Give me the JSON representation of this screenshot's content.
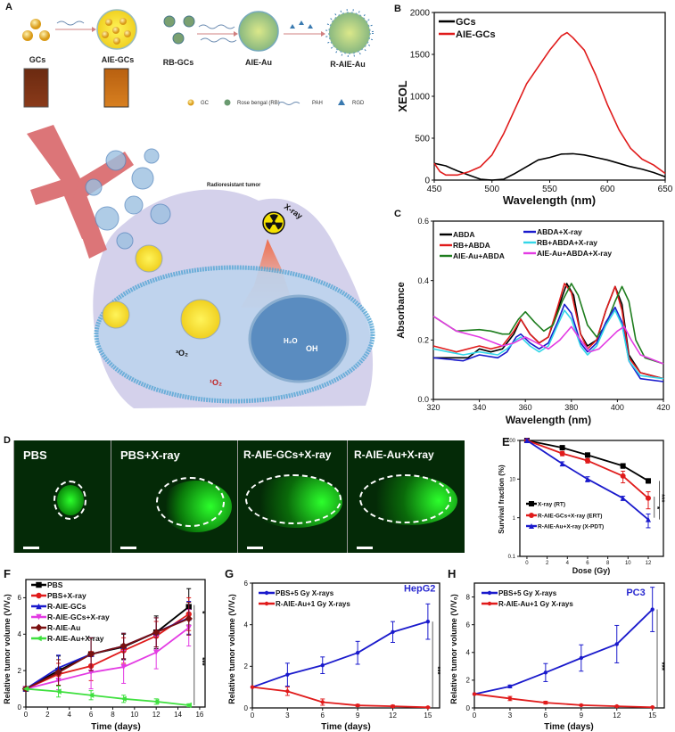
{
  "panels": [
    "A",
    "B",
    "C",
    "D",
    "E",
    "F",
    "G",
    "H"
  ],
  "schematic": {
    "species": [
      "GCs",
      "AIE-GCs",
      "RB-GCs",
      "AIE-Au",
      "R-AIE-Au"
    ],
    "legend": {
      "gc": "GC",
      "rb": "Rose bengal (RB)",
      "pah": "PAH",
      "rgd": "RGD"
    },
    "tumor_label": "Radioresistant tumor",
    "xray_label": "X-ray",
    "triplet_o2": "³O₂",
    "singlet_o2": "¹O₂",
    "water": "H₂O",
    "hydroxyl": "OH",
    "colors": {
      "gold": "#e0a020",
      "cell": "#c9c6e6",
      "vessel": "#d9676a",
      "membrane": "#5aa9d6"
    }
  },
  "fluorescence_images": [
    {
      "label": "PBS"
    },
    {
      "label": "PBS+X-ray"
    },
    {
      "label": "R-AIE-GCs+X-ray"
    },
    {
      "label": "R-AIE-Au+X-ray"
    }
  ],
  "chart_data": [
    {
      "panel": "B",
      "type": "line",
      "xlabel": "Wavelength (nm)",
      "ylabel": "XEOL",
      "xlim": [
        450,
        650
      ],
      "ylim": [
        0,
        2000
      ],
      "xticks": [
        450,
        500,
        550,
        600,
        650
      ],
      "yticks": [
        0,
        500,
        1000,
        1500,
        2000
      ],
      "series": [
        {
          "name": "GCs",
          "color": "#000000",
          "x": [
            450,
            460,
            470,
            480,
            490,
            500,
            510,
            520,
            530,
            540,
            550,
            560,
            570,
            580,
            590,
            600,
            610,
            620,
            630,
            640,
            650
          ],
          "y": [
            200,
            170,
            110,
            60,
            10,
            0,
            10,
            80,
            160,
            240,
            270,
            310,
            315,
            300,
            270,
            240,
            200,
            160,
            130,
            90,
            40
          ]
        },
        {
          "name": "AIE-GCs",
          "color": "#e01b1b",
          "x": [
            450,
            455,
            460,
            470,
            480,
            490,
            500,
            510,
            520,
            530,
            540,
            550,
            560,
            565,
            570,
            580,
            590,
            600,
            610,
            620,
            630,
            640,
            650
          ],
          "y": [
            200,
            100,
            60,
            60,
            100,
            160,
            300,
            550,
            850,
            1150,
            1350,
            1550,
            1720,
            1760,
            1700,
            1550,
            1250,
            900,
            600,
            380,
            250,
            180,
            80
          ]
        }
      ]
    },
    {
      "panel": "C",
      "type": "line",
      "xlabel": "Wavelength (nm)",
      "ylabel": "Absorbance",
      "xlim": [
        320,
        420
      ],
      "ylim": [
        0,
        0.6
      ],
      "xticks": [
        320,
        340,
        360,
        380,
        400,
        420
      ],
      "yticks": [
        0.0,
        0.2,
        0.4,
        0.6
      ],
      "ytick_labels": [
        "0.0",
        "0.2",
        "0.4",
        "0.6"
      ],
      "series": [
        {
          "name": "ABDA",
          "color": "#000000",
          "x": [
            320,
            330,
            335,
            340,
            345,
            350,
            355,
            358,
            362,
            366,
            370,
            374,
            378,
            381,
            384,
            387,
            391,
            395,
            399,
            402,
            405,
            410,
            420
          ],
          "y": [
            0.14,
            0.14,
            0.14,
            0.17,
            0.16,
            0.17,
            0.22,
            0.27,
            0.22,
            0.19,
            0.21,
            0.3,
            0.39,
            0.35,
            0.22,
            0.18,
            0.2,
            0.3,
            0.38,
            0.32,
            0.15,
            0.09,
            0.07
          ]
        },
        {
          "name": "RB+ABDA",
          "color": "#e01b1b",
          "x": [
            320,
            330,
            340,
            345,
            350,
            355,
            358,
            362,
            366,
            370,
            374,
            377,
            380,
            384,
            387,
            391,
            395,
            399,
            402,
            405,
            410,
            420
          ],
          "y": [
            0.18,
            0.16,
            0.18,
            0.17,
            0.18,
            0.23,
            0.27,
            0.22,
            0.19,
            0.21,
            0.31,
            0.39,
            0.36,
            0.22,
            0.17,
            0.2,
            0.3,
            0.38,
            0.3,
            0.14,
            0.09,
            0.07
          ]
        },
        {
          "name": "AIE-Au+ABDA",
          "color": "#1e7d1e",
          "x": [
            320,
            330,
            340,
            345,
            350,
            353,
            357,
            360,
            364,
            368,
            372,
            376,
            380,
            383,
            387,
            391,
            395,
            399,
            402,
            405,
            408,
            412,
            420
          ],
          "y": [
            0.28,
            0.23,
            0.235,
            0.23,
            0.22,
            0.22,
            0.27,
            0.295,
            0.26,
            0.23,
            0.25,
            0.33,
            0.39,
            0.35,
            0.25,
            0.21,
            0.25,
            0.33,
            0.38,
            0.33,
            0.2,
            0.14,
            0.12
          ]
        },
        {
          "name": "ABDA+X-ray",
          "color": "#1a1acc",
          "x": [
            320,
            333,
            340,
            348,
            352,
            356,
            358,
            362,
            366,
            370,
            374,
            377,
            380,
            384,
            387,
            391,
            395,
            399,
            402,
            405,
            410,
            420
          ],
          "y": [
            0.14,
            0.13,
            0.15,
            0.14,
            0.16,
            0.21,
            0.22,
            0.19,
            0.17,
            0.19,
            0.26,
            0.32,
            0.29,
            0.19,
            0.16,
            0.19,
            0.26,
            0.31,
            0.26,
            0.13,
            0.07,
            0.06
          ]
        },
        {
          "name": "RB+ABDA+X-ray",
          "color": "#33d6e8",
          "x": [
            320,
            333,
            340,
            348,
            352,
            356,
            358,
            362,
            366,
            370,
            374,
            377,
            380,
            384,
            387,
            391,
            395,
            399,
            402,
            405,
            410,
            420
          ],
          "y": [
            0.17,
            0.15,
            0.16,
            0.15,
            0.17,
            0.2,
            0.21,
            0.18,
            0.16,
            0.18,
            0.25,
            0.3,
            0.27,
            0.18,
            0.15,
            0.18,
            0.25,
            0.3,
            0.25,
            0.13,
            0.08,
            0.07
          ]
        },
        {
          "name": "AIE-Au+ABDA+X-ray",
          "color": "#e33be3",
          "x": [
            320,
            330,
            340,
            350,
            355,
            360,
            365,
            370,
            375,
            380,
            384,
            388,
            392,
            396,
            400,
            403,
            406,
            410,
            420
          ],
          "y": [
            0.28,
            0.23,
            0.21,
            0.18,
            0.19,
            0.21,
            0.19,
            0.17,
            0.2,
            0.245,
            0.2,
            0.16,
            0.17,
            0.2,
            0.23,
            0.245,
            0.2,
            0.15,
            0.12
          ]
        }
      ]
    },
    {
      "panel": "E",
      "type": "line",
      "xlabel": "Dose (Gy)",
      "ylabel": "Survival fraction (%)",
      "yscale": "log",
      "xlim": [
        -0.7,
        13.5
      ],
      "ylim": [
        0.1,
        100
      ],
      "xticks": [
        0,
        2,
        4,
        6,
        8,
        10,
        12
      ],
      "yticks": [
        0.1,
        1,
        10,
        100
      ],
      "ytick_labels": [
        "0.1",
        "1",
        "10",
        "100"
      ],
      "series": [
        {
          "name": "X-ray (RT)",
          "color": "#000000",
          "marker": "square",
          "x": [
            0,
            3.5,
            6,
            9.5,
            12
          ],
          "y": [
            100,
            65,
            42,
            22,
            9
          ],
          "err": [
            8,
            6,
            5,
            3,
            1.2
          ]
        },
        {
          "name": "R-AIE-GCs+X-ray (ERT)",
          "color": "#e01b1b",
          "marker": "circle",
          "x": [
            0,
            3.5,
            6,
            9.5,
            12
          ],
          "y": [
            100,
            46,
            30,
            12,
            3.2
          ],
          "err": [
            8,
            6,
            4,
            4,
            1.5
          ]
        },
        {
          "name": "R-AIE-Au+X-ray (X-PDT)",
          "color": "#1a1acc",
          "marker": "triangle",
          "x": [
            0,
            3.5,
            6,
            9.5,
            12
          ],
          "y": [
            100,
            25,
            10,
            3.2,
            0.9
          ],
          "err": [
            10,
            3,
            1.5,
            0.4,
            0.35
          ]
        }
      ],
      "annotations": [
        {
          "text": "***",
          "x": 13.1,
          "y": 3.2,
          "color": "#000000"
        },
        {
          "text": "*",
          "x": 12.6,
          "y": 1.8,
          "color": "#000000"
        }
      ]
    },
    {
      "panel": "F",
      "type": "line",
      "xlabel": "Time (days)",
      "ylabel": "Relative tumor volume (V/V₀)",
      "xlim": [
        0,
        16.5
      ],
      "ylim": [
        0,
        7
      ],
      "xticks": [
        0,
        2,
        4,
        6,
        8,
        10,
        12,
        14,
        16
      ],
      "yticks": [
        0,
        2,
        4,
        6
      ],
      "series": [
        {
          "name": "PBS",
          "color": "#000000",
          "marker": "square",
          "x": [
            0,
            3,
            6,
            9,
            12,
            15
          ],
          "y": [
            1,
            2.0,
            2.9,
            3.3,
            4.1,
            5.5
          ],
          "err": [
            0,
            0.8,
            0.9,
            0.7,
            0.9,
            1.0
          ]
        },
        {
          "name": "PBS+X-ray",
          "color": "#e01b1b",
          "marker": "circle",
          "x": [
            0,
            3,
            6,
            9,
            12,
            15
          ],
          "y": [
            1,
            1.8,
            2.25,
            3.1,
            3.9,
            5.1
          ],
          "err": [
            0,
            0.6,
            0.8,
            0.7,
            0.8,
            0.9
          ]
        },
        {
          "name": "R-AIE-GCs",
          "color": "#1a1acc",
          "marker": "triangle",
          "x": [
            0,
            3,
            6,
            9,
            12,
            15
          ],
          "y": [
            1,
            2.15,
            2.9,
            3.35,
            4.1,
            4.9
          ],
          "err": [
            0,
            0.7,
            0.9,
            0.7,
            0.8,
            0.9
          ]
        },
        {
          "name": "R-AIE-GCs+X-ray",
          "color": "#e33be3",
          "marker": "triangle-down",
          "x": [
            0,
            3,
            6,
            9,
            12,
            15
          ],
          "y": [
            1,
            1.45,
            1.9,
            2.2,
            3.0,
            4.35
          ],
          "err": [
            0,
            0.5,
            0.9,
            0.9,
            0.9,
            1.0
          ]
        },
        {
          "name": "R-AIE-Au",
          "color": "#7a1010",
          "marker": "diamond",
          "x": [
            0,
            3,
            6,
            9,
            12,
            15
          ],
          "y": [
            1,
            1.9,
            2.9,
            3.35,
            4.1,
            4.85
          ],
          "err": [
            0,
            0.7,
            0.9,
            0.7,
            0.8,
            0.9
          ]
        },
        {
          "name": "R-AIE-Au+X-ray",
          "color": "#3ee03e",
          "marker": "triangle-left",
          "x": [
            0,
            3,
            6,
            9,
            12,
            15
          ],
          "y": [
            1,
            0.85,
            0.65,
            0.45,
            0.3,
            0.1
          ],
          "err": [
            0,
            0.3,
            0.25,
            0.2,
            0.15,
            0.08
          ]
        }
      ],
      "annotations": [
        {
          "text": "*",
          "x": 16.0,
          "y": 5.2,
          "color": "#000000"
        },
        {
          "text": "***",
          "x": 16.0,
          "y": 2.5,
          "color": "#000000"
        }
      ]
    },
    {
      "panel": "G",
      "type": "line",
      "xlabel": "Time (days)",
      "ylabel": "Relative tumor volume (V/V₀)",
      "xlim": [
        0,
        16
      ],
      "ylim": [
        0,
        6
      ],
      "xticks": [
        0,
        3,
        6,
        9,
        12,
        15
      ],
      "yticks": [
        0,
        2,
        4,
        6
      ],
      "series": [
        {
          "name": "PBS+5 Gy X-rays",
          "color": "#1a1acc",
          "marker": "circle",
          "x": [
            0,
            3,
            6,
            9,
            12,
            15
          ],
          "y": [
            1,
            1.6,
            2.05,
            2.65,
            3.65,
            4.15
          ],
          "err": [
            0,
            0.55,
            0.4,
            0.55,
            0.5,
            0.85
          ]
        },
        {
          "name": "R-AIE-Au+1 Gy X-rays",
          "color": "#e01b1b",
          "marker": "circle",
          "x": [
            0,
            3,
            6,
            9,
            12,
            15
          ],
          "y": [
            1,
            0.8,
            0.28,
            0.12,
            0.08,
            0.03
          ],
          "err": [
            0,
            0.2,
            0.15,
            0.05,
            0.05,
            0.03
          ]
        }
      ],
      "annotations": [
        {
          "text": "HepG2",
          "x": 14.3,
          "y": 5.6,
          "color": "#2a2ad0"
        },
        {
          "text": "***",
          "x": 15.6,
          "y": 1.8,
          "color": "#000000"
        }
      ]
    },
    {
      "panel": "H",
      "type": "line",
      "xlabel": "Time (days)",
      "ylabel": "Relative tumor volume (V/V₀)",
      "xlim": [
        0,
        16
      ],
      "ylim": [
        0,
        9
      ],
      "xticks": [
        0,
        3,
        6,
        9,
        12,
        15
      ],
      "yticks": [
        0,
        2,
        4,
        6,
        8
      ],
      "series": [
        {
          "name": "PBS+5 Gy X-rays",
          "color": "#1a1acc",
          "marker": "circle",
          "x": [
            0,
            3,
            6,
            9,
            12,
            15
          ],
          "y": [
            1,
            1.55,
            2.55,
            3.6,
            4.6,
            7.1
          ],
          "err": [
            0,
            0.1,
            0.65,
            0.95,
            1.35,
            1.6
          ]
        },
        {
          "name": "R-AIE-Au+1 Gy X-rays",
          "color": "#e01b1b",
          "marker": "circle",
          "x": [
            0,
            3,
            6,
            9,
            12,
            15
          ],
          "y": [
            1,
            0.68,
            0.38,
            0.2,
            0.12,
            0.05
          ],
          "err": [
            0,
            0.15,
            0.1,
            0.05,
            0.05,
            0.03
          ]
        }
      ],
      "annotations": [
        {
          "text": "PC3",
          "x": 13.6,
          "y": 8.1,
          "color": "#2a2ad0"
        },
        {
          "text": "***",
          "x": 15.6,
          "y": 3.0,
          "color": "#000000"
        }
      ]
    }
  ]
}
